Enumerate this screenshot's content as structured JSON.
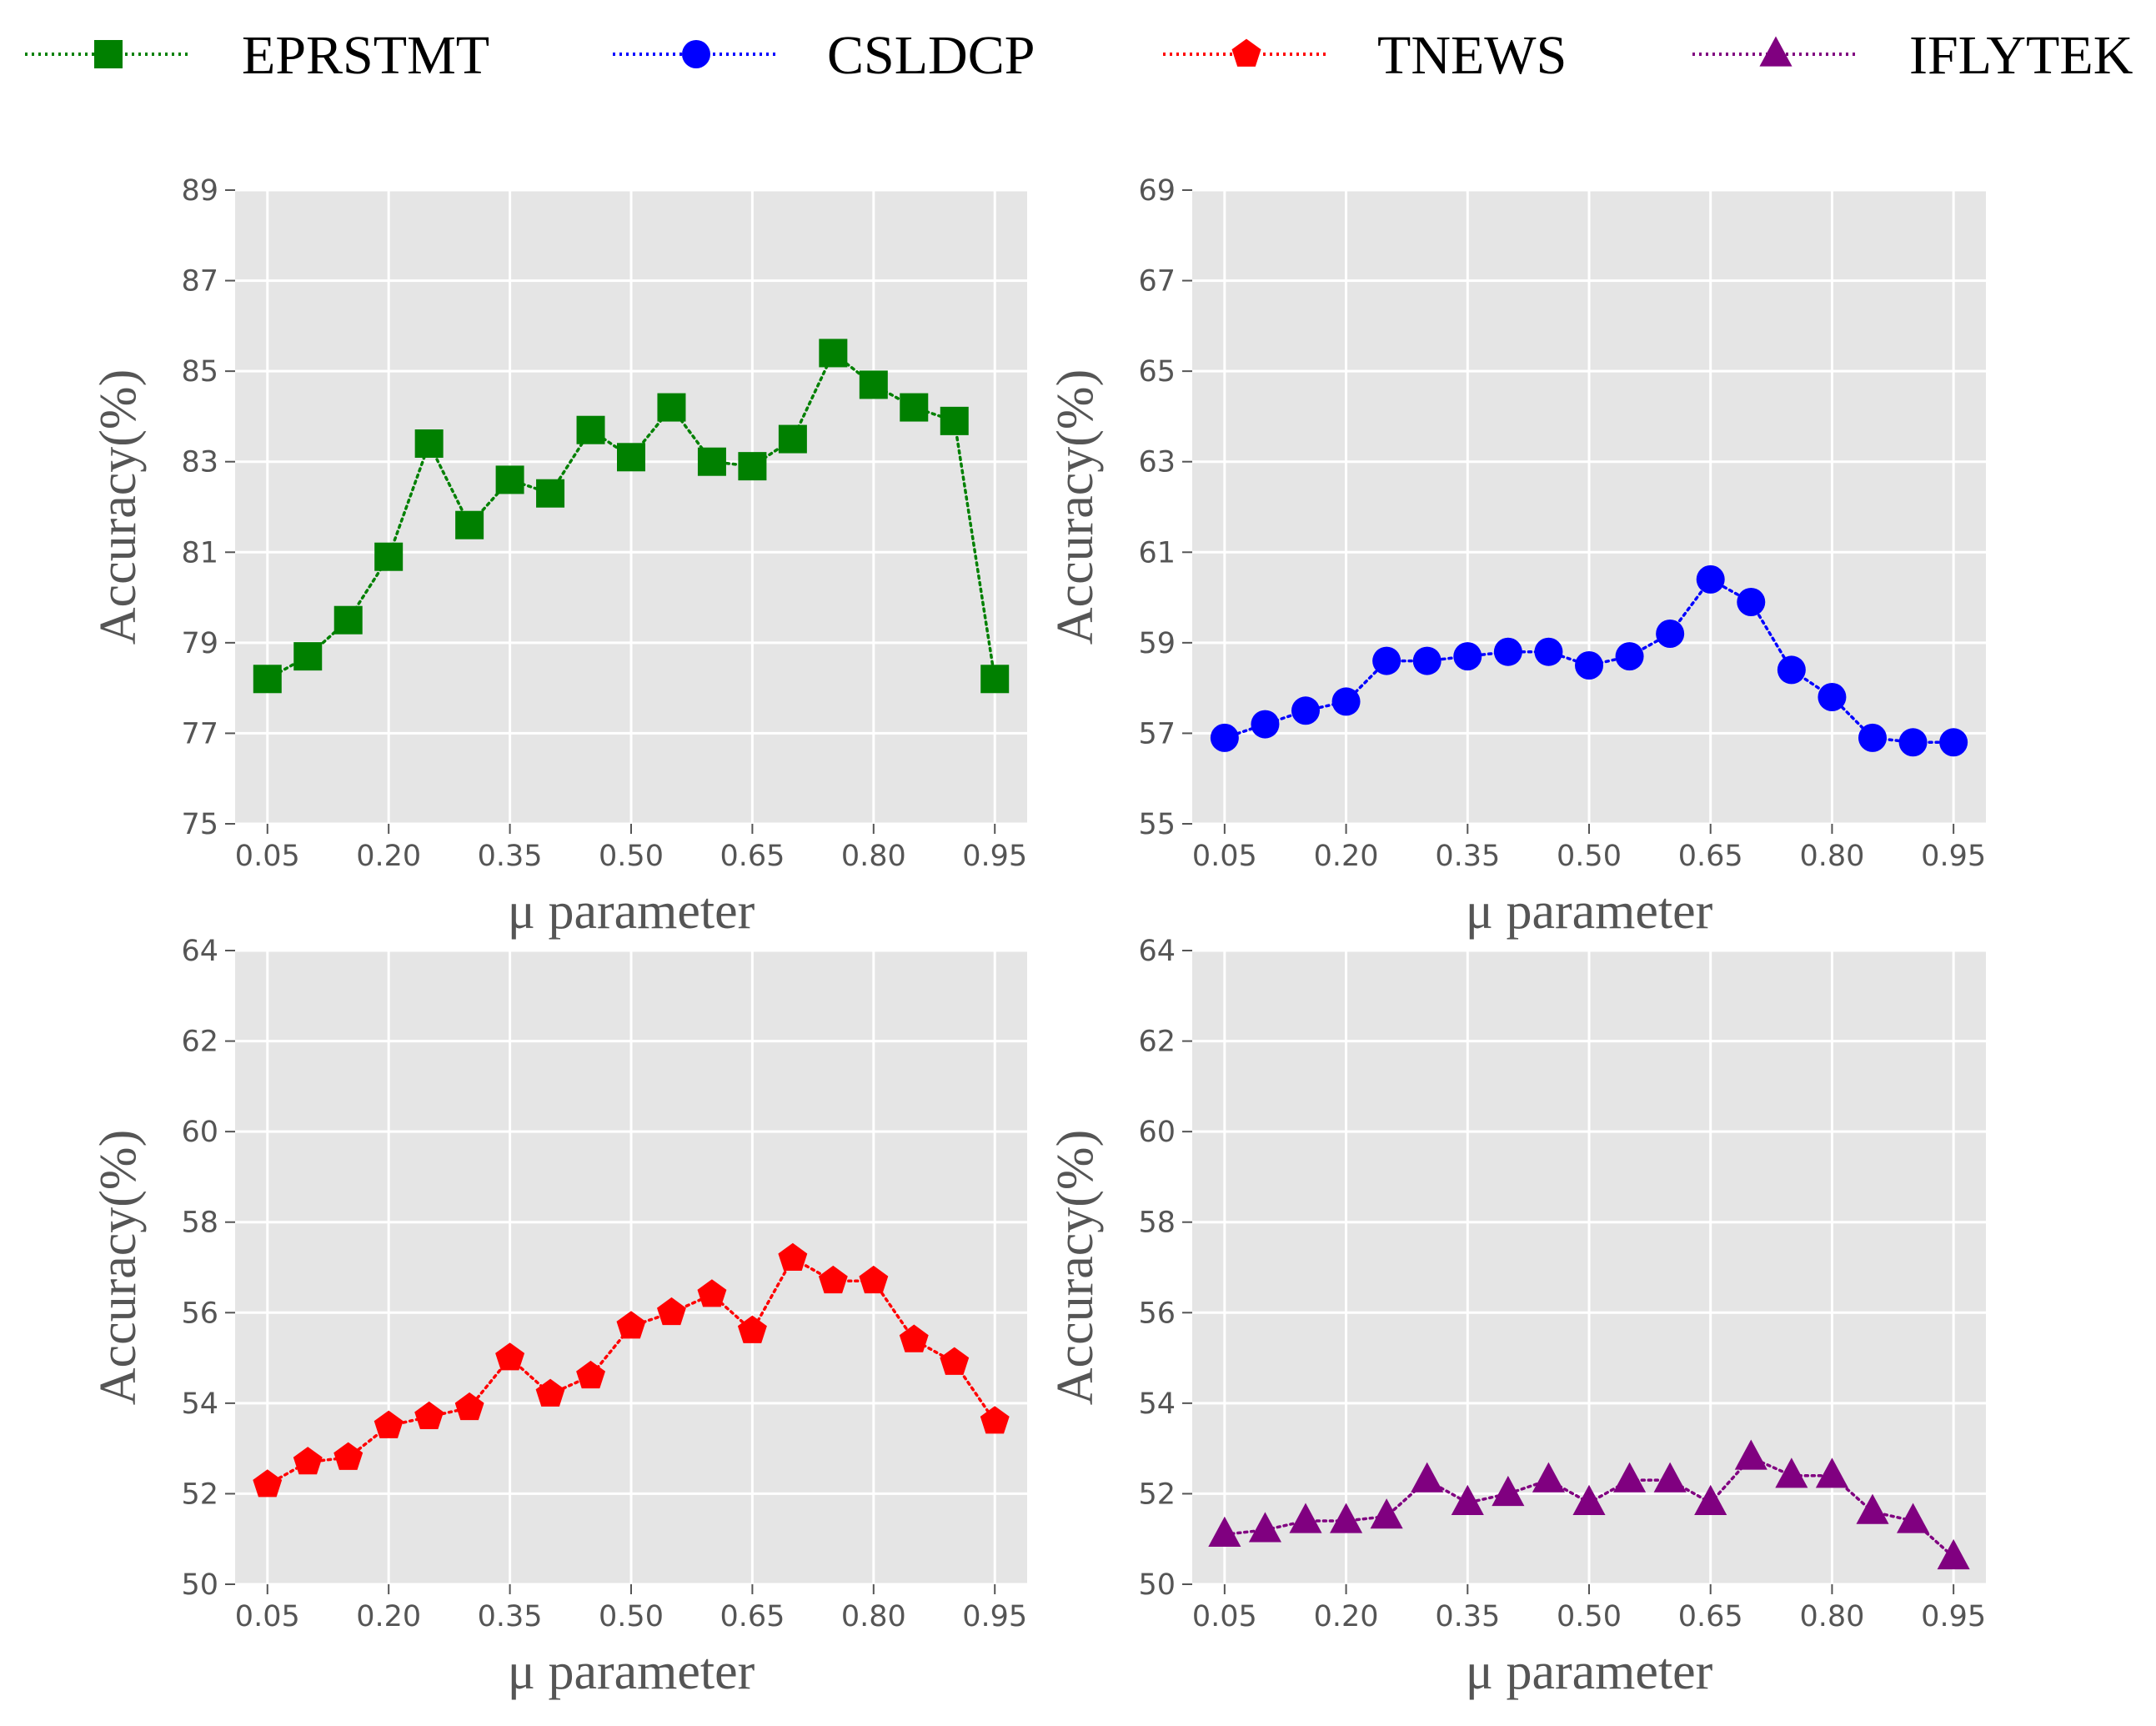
{
  "legend": [
    {
      "label": "EPRSTMT",
      "color": "#008000",
      "marker": "square"
    },
    {
      "label": "CSLDCP",
      "color": "#0000ff",
      "marker": "circle"
    },
    {
      "label": "TNEWS",
      "color": "#ff0000",
      "marker": "pentagon"
    },
    {
      "label": "IFLYTEK",
      "color": "#800080",
      "marker": "triangle"
    }
  ],
  "chart_data": [
    {
      "type": "line",
      "series_name": "EPRSTMT",
      "color": "#008000",
      "marker": "square",
      "xlabel": "μ parameter",
      "ylabel": "Accuracy(%)",
      "x": [
        0.05,
        0.1,
        0.15,
        0.2,
        0.25,
        0.3,
        0.35,
        0.4,
        0.45,
        0.5,
        0.55,
        0.6,
        0.65,
        0.7,
        0.75,
        0.8,
        0.85,
        0.9,
        0.95
      ],
      "values": [
        78.2,
        78.7,
        79.5,
        80.9,
        83.4,
        81.6,
        82.6,
        82.3,
        83.7,
        83.1,
        84.2,
        83.0,
        82.9,
        83.5,
        85.4,
        84.7,
        84.2,
        83.9,
        78.2
      ],
      "xlim": [
        0.01,
        0.99
      ],
      "ylim": [
        75,
        89
      ],
      "xticks": [
        "0.05",
        "0.20",
        "0.35",
        "0.50",
        "0.65",
        "0.80",
        "0.95"
      ],
      "yticks": [
        "75",
        "77",
        "79",
        "81",
        "83",
        "85",
        "87",
        "89"
      ],
      "grid": true
    },
    {
      "type": "line",
      "series_name": "CSLDCP",
      "color": "#0000ff",
      "marker": "circle",
      "xlabel": "μ parameter",
      "ylabel": "Accuracy(%)",
      "x": [
        0.05,
        0.1,
        0.15,
        0.2,
        0.25,
        0.3,
        0.35,
        0.4,
        0.45,
        0.5,
        0.55,
        0.6,
        0.65,
        0.7,
        0.75,
        0.8,
        0.85,
        0.9,
        0.95
      ],
      "values": [
        56.9,
        57.2,
        57.5,
        57.7,
        58.6,
        58.6,
        58.7,
        58.8,
        58.8,
        58.5,
        58.7,
        59.2,
        60.4,
        59.9,
        58.4,
        57.8,
        56.9,
        56.8,
        56.8
      ],
      "xlim": [
        0.01,
        0.99
      ],
      "ylim": [
        55,
        69
      ],
      "xticks": [
        "0.05",
        "0.20",
        "0.35",
        "0.50",
        "0.65",
        "0.80",
        "0.95"
      ],
      "yticks": [
        "55",
        "57",
        "59",
        "61",
        "63",
        "65",
        "67",
        "69"
      ],
      "grid": true
    },
    {
      "type": "line",
      "series_name": "TNEWS",
      "color": "#ff0000",
      "marker": "pentagon",
      "xlabel": "μ parameter",
      "ylabel": "Accuracy(%)",
      "x": [
        0.05,
        0.1,
        0.15,
        0.2,
        0.25,
        0.3,
        0.35,
        0.4,
        0.45,
        0.5,
        0.55,
        0.6,
        0.65,
        0.7,
        0.75,
        0.8,
        0.85,
        0.9,
        0.95
      ],
      "values": [
        52.2,
        52.7,
        52.8,
        53.5,
        53.7,
        53.9,
        55.0,
        54.2,
        54.6,
        55.7,
        56.0,
        56.4,
        55.6,
        57.2,
        56.7,
        56.7,
        55.4,
        54.9,
        53.6
      ],
      "xlim": [
        0.01,
        0.99
      ],
      "ylim": [
        50,
        64
      ],
      "xticks": [
        "0.05",
        "0.20",
        "0.35",
        "0.50",
        "0.65",
        "0.80",
        "0.95"
      ],
      "yticks": [
        "50",
        "52",
        "54",
        "56",
        "58",
        "60",
        "62",
        "64"
      ],
      "grid": true
    },
    {
      "type": "line",
      "series_name": "IFLYTEK",
      "color": "#800080",
      "marker": "triangle",
      "xlabel": "μ parameter",
      "ylabel": "Accuracy(%)",
      "x": [
        0.05,
        0.1,
        0.15,
        0.2,
        0.25,
        0.3,
        0.35,
        0.4,
        0.45,
        0.5,
        0.55,
        0.6,
        0.65,
        0.7,
        0.75,
        0.8,
        0.85,
        0.9,
        0.95
      ],
      "values": [
        51.1,
        51.2,
        51.4,
        51.4,
        51.5,
        52.3,
        51.8,
        52.0,
        52.3,
        51.8,
        52.3,
        52.3,
        51.8,
        52.8,
        52.4,
        52.4,
        51.6,
        51.4,
        50.6
      ],
      "xlim": [
        0.01,
        0.99
      ],
      "ylim": [
        50,
        64
      ],
      "xticks": [
        "0.05",
        "0.20",
        "0.35",
        "0.50",
        "0.65",
        "0.80",
        "0.95"
      ],
      "yticks": [
        "50",
        "52",
        "54",
        "56",
        "58",
        "60",
        "62",
        "64"
      ],
      "grid": true
    }
  ]
}
